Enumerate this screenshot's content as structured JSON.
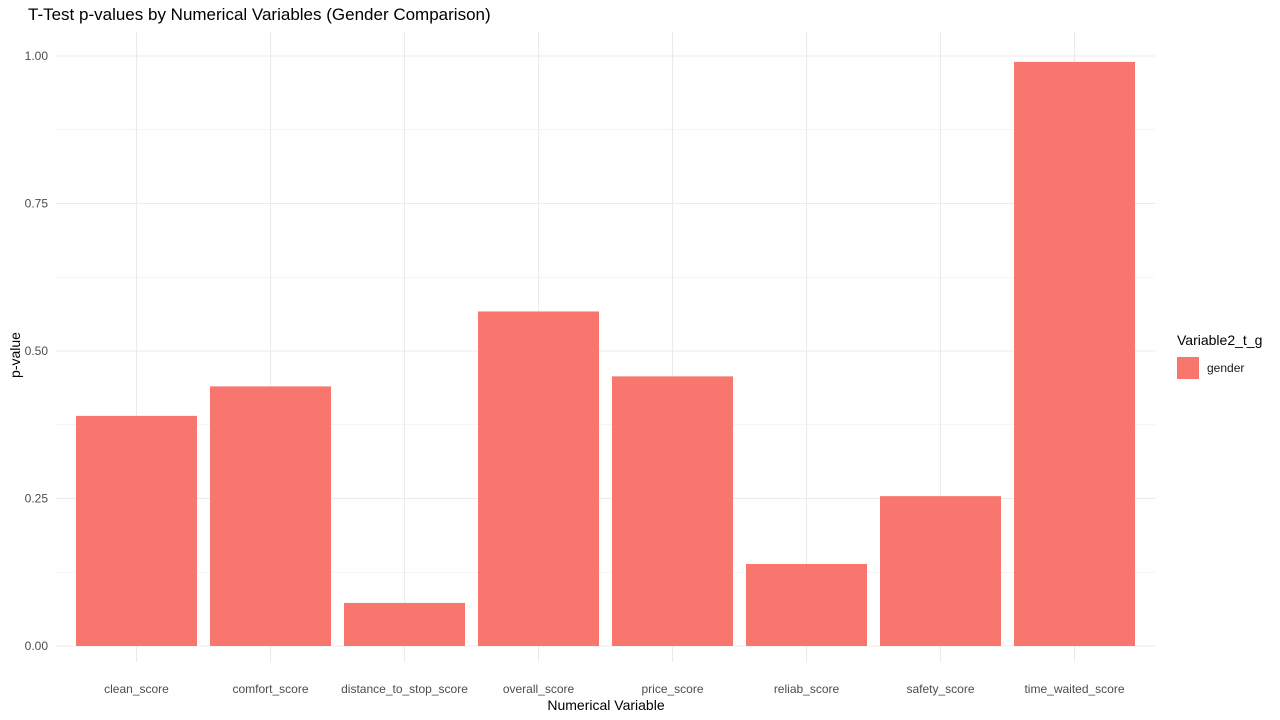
{
  "chart_data": {
    "type": "bar",
    "title": "T-Test p-values by Numerical Variables (Gender Comparison)",
    "xlabel": "Numerical Variable",
    "ylabel": "p-value",
    "categories": [
      "clean_score",
      "comfort_score",
      "distance_to_stop_score",
      "overall_score",
      "price_score",
      "reliab_score",
      "safety_score",
      "time_waited_score"
    ],
    "series": [
      {
        "name": "gender",
        "values": [
          0.39,
          0.44,
          0.073,
          0.567,
          0.457,
          0.139,
          0.254,
          0.99
        ],
        "color": "#F8766D"
      }
    ],
    "ylim": [
      0,
      1.0
    ],
    "yticks": [
      0.0,
      0.25,
      0.5,
      0.75,
      1.0
    ],
    "ytick_labels": [
      "0.00",
      "0.25",
      "0.50",
      "0.75",
      "1.00"
    ],
    "grid": true,
    "grid_color": "#EBEBEB",
    "legend": {
      "title": "Variable2_t_g",
      "position": "right",
      "items": [
        {
          "label": "gender",
          "color": "#F8766D"
        }
      ]
    }
  }
}
